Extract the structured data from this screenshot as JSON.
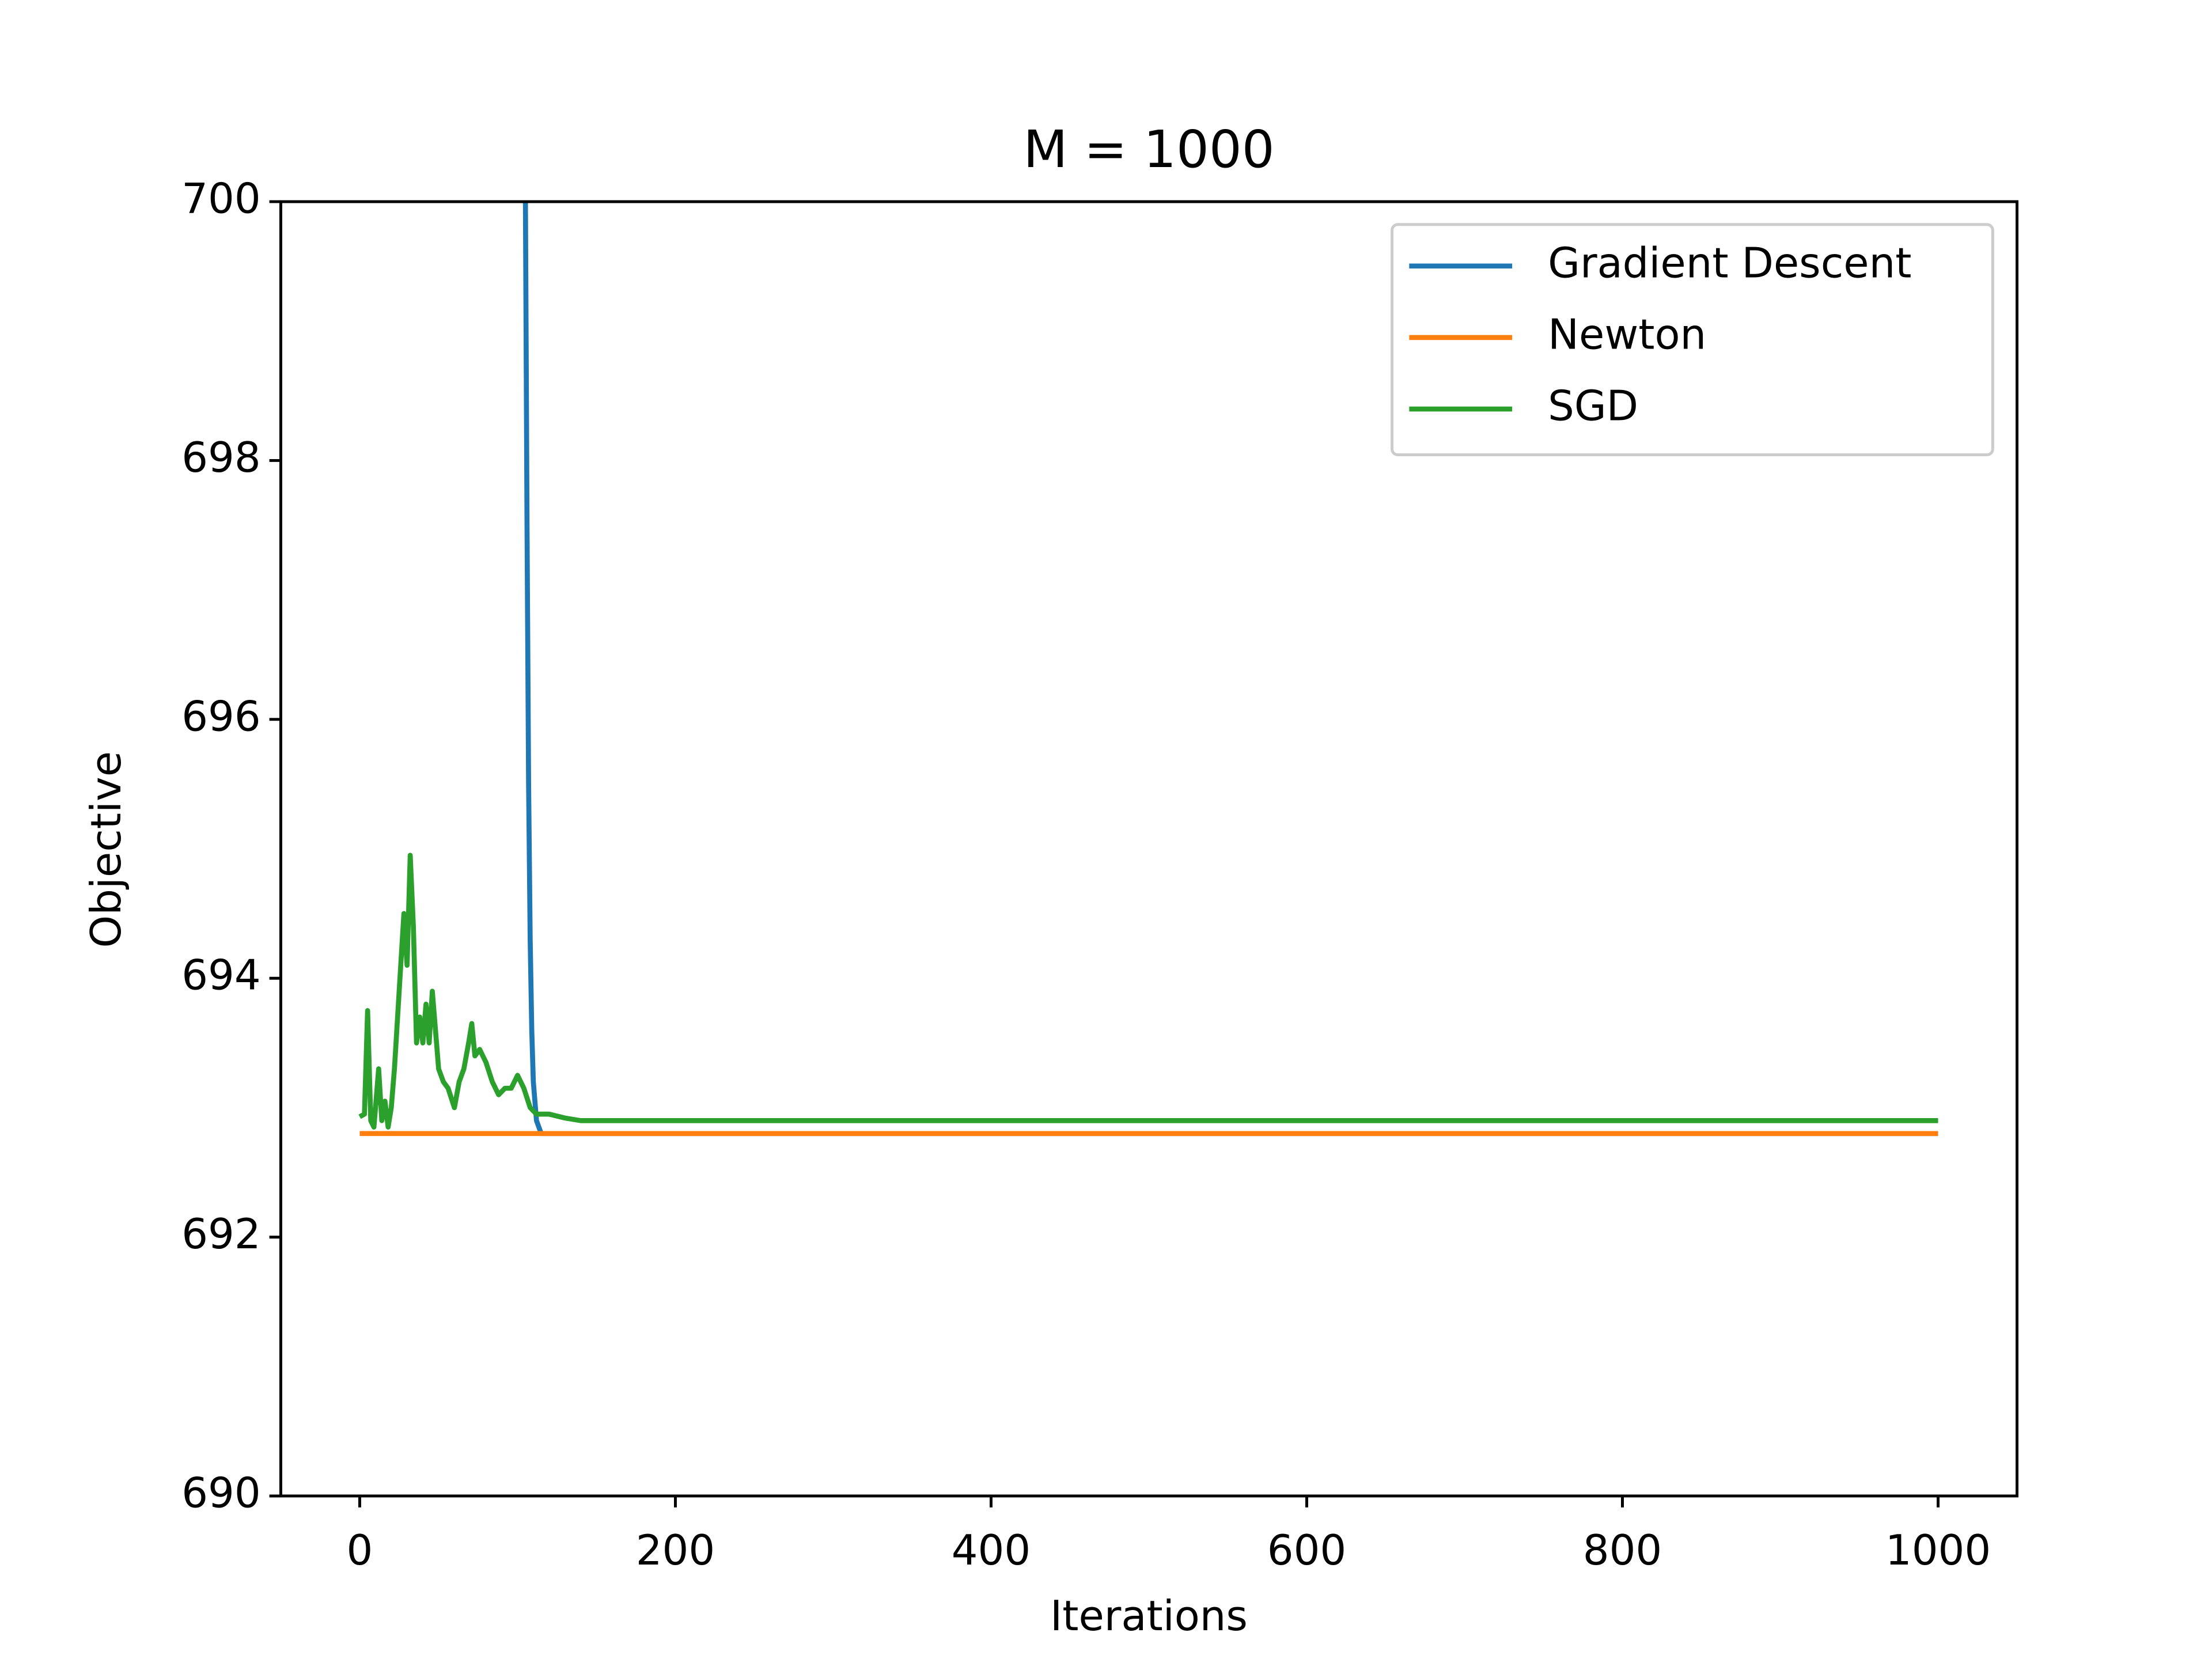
{
  "chart_data": {
    "type": "line",
    "title": "M = 1000",
    "xlabel": "Iterations",
    "ylabel": "Objective",
    "xlim": [
      -50,
      1050
    ],
    "ylim": [
      690,
      700
    ],
    "xticks": [
      0,
      200,
      400,
      600,
      800,
      1000
    ],
    "yticks": [
      690,
      692,
      694,
      696,
      698,
      700
    ],
    "grid": false,
    "legend": "upper right",
    "series": [
      {
        "name": "Gradient Descent",
        "color": "#1f77b4",
        "x": [
          105,
          106,
          107,
          108,
          109,
          110,
          112,
          115,
          1000
        ],
        "values": [
          700,
          697.5,
          695.5,
          694.3,
          693.6,
          693.2,
          692.9,
          692.8,
          692.8
        ]
      },
      {
        "name": "Newton",
        "color": "#ff7f0e",
        "x": [
          0,
          1000
        ],
        "values": [
          692.8,
          692.8
        ]
      },
      {
        "name": "SGD",
        "color": "#2ca02c",
        "x": [
          0,
          3,
          5,
          7,
          9,
          12,
          14,
          16,
          18,
          20,
          22,
          25,
          28,
          30,
          32,
          34,
          36,
          38,
          40,
          42,
          44,
          46,
          48,
          50,
          53,
          56,
          60,
          63,
          66,
          69,
          71,
          73,
          76,
          80,
          84,
          88,
          92,
          96,
          100,
          104,
          108,
          112,
          120,
          130,
          140,
          150,
          200,
          300,
          1000
        ],
        "values": [
          692.93,
          692.95,
          693.75,
          692.9,
          692.85,
          693.3,
          692.9,
          693.05,
          692.85,
          693.0,
          693.3,
          693.9,
          694.5,
          694.1,
          694.95,
          694.4,
          693.5,
          693.7,
          693.5,
          693.8,
          693.5,
          693.9,
          693.6,
          693.3,
          693.2,
          693.15,
          693.0,
          693.2,
          693.3,
          693.5,
          693.65,
          693.4,
          693.45,
          693.35,
          693.2,
          693.1,
          693.15,
          693.15,
          693.25,
          693.15,
          693.0,
          692.95,
          692.95,
          692.92,
          692.9,
          692.9,
          692.9,
          692.9,
          692.9
        ]
      }
    ]
  }
}
